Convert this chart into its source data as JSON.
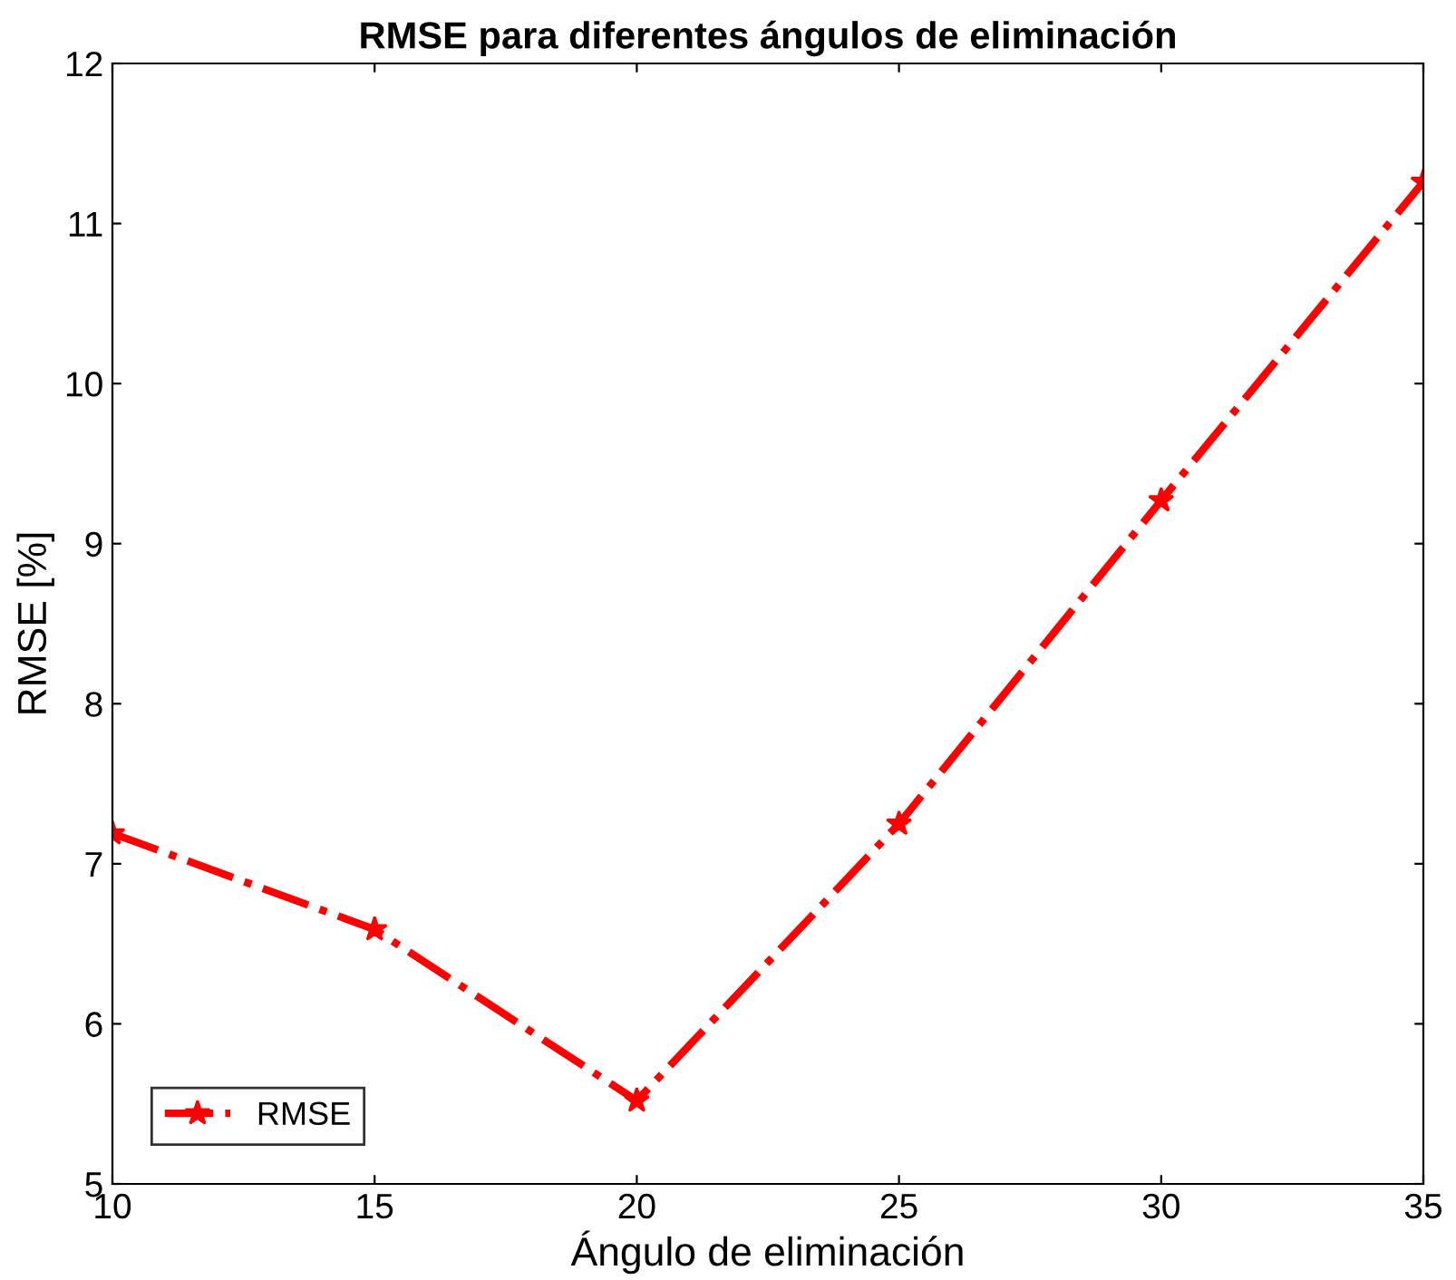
{
  "chart_data": {
    "type": "line",
    "title": "RMSE para diferentes ángulos de eliminación",
    "xlabel": "Ángulo de eliminación",
    "ylabel": "RMSE [%]",
    "x": [
      10,
      15,
      20,
      25,
      30,
      35
    ],
    "series": [
      {
        "name": "RMSE",
        "color": "#ff0000",
        "values": [
          7.19,
          6.59,
          5.52,
          7.25,
          9.27,
          11.26
        ]
      }
    ],
    "xlim": [
      10,
      35
    ],
    "xticks": [
      10,
      15,
      20,
      25,
      30,
      35
    ],
    "ylim": [
      5,
      12
    ],
    "yticks": [
      5,
      6,
      7,
      8,
      9,
      10,
      11,
      12
    ],
    "legend": "bottom left",
    "marker": "star",
    "line_style": "dashdot",
    "grid": false
  }
}
